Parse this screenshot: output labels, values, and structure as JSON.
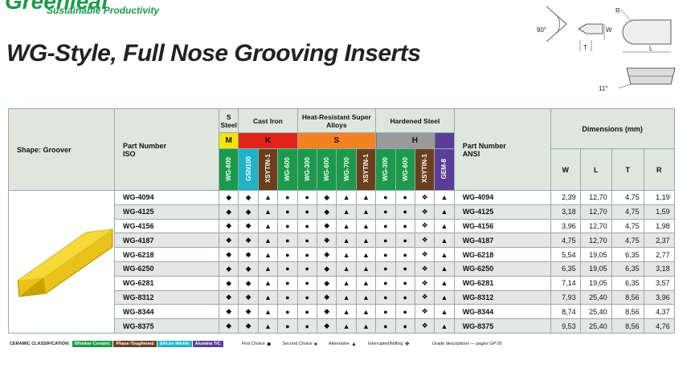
{
  "header": {
    "logo": "Greenleaf",
    "tagline": "Sustainable Productivity",
    "title": "WG-Style, Full Nose Grooving Inserts"
  },
  "diagram": {
    "labels": {
      "r": "R",
      "w": "W",
      "angle": "90°",
      "t": "T",
      "l": "L",
      "clearance": "11°"
    }
  },
  "table": {
    "shape_header": "Shape: Groover",
    "iso_header": [
      "Part Number",
      "ISO"
    ],
    "ansi_header": [
      "Part Number",
      "ANSI"
    ],
    "dimensions_header": "Dimensions (mm)",
    "dimension_columns": [
      "W",
      "L",
      "T",
      "R"
    ],
    "groups": [
      {
        "name": "S Steel",
        "letter": "M",
        "color": "#f5e400",
        "grades": [
          {
            "name": "WG-600",
            "color": "#1a9a4a"
          }
        ]
      },
      {
        "name": "Cast Iron",
        "letter": "K",
        "color": "#e2231a",
        "grades": [
          {
            "name": "GSN100",
            "color": "#1fb3c6"
          },
          {
            "name": "XSYTIN-1",
            "color": "#6b3f1e"
          },
          {
            "name": "WG-600",
            "color": "#1a9a4a"
          }
        ]
      },
      {
        "name": "Heat-Resistant Super Alloys",
        "letter": "S",
        "color": "#f58220",
        "grades": [
          {
            "name": "WG-300",
            "color": "#1a9a4a"
          },
          {
            "name": "WG-600",
            "color": "#1a9a4a"
          },
          {
            "name": "WG-700",
            "color": "#1a9a4a"
          },
          {
            "name": "XSYTIN-1",
            "color": "#6b3f1e"
          }
        ]
      },
      {
        "name": "Hardened Steel",
        "letter": "H",
        "color": "#9a9a9a",
        "grades": [
          {
            "name": "WG-300",
            "color": "#1a9a4a"
          },
          {
            "name": "WG-600",
            "color": "#1a9a4a"
          },
          {
            "name": "XSYTIN-1",
            "color": "#6b3f1e"
          },
          {
            "name": "GEM-8",
            "color": "#5a3d97"
          }
        ]
      }
    ],
    "rows": [
      {
        "iso": "WG-4094",
        "grades": [
          "◆",
          "◆",
          "▲",
          "●",
          "●",
          "◆",
          "▲",
          "▲",
          "●",
          "●",
          "❖",
          "▲"
        ],
        "ansi": "WG-4094",
        "dims": [
          "2,39",
          "12,70",
          "4,75",
          "1,19"
        ]
      },
      {
        "iso": "WG-4125",
        "grades": [
          "◆",
          "◆",
          "▲",
          "●",
          "●",
          "◆",
          "▲",
          "▲",
          "●",
          "●",
          "❖",
          "▲"
        ],
        "ansi": "WG-4125",
        "dims": [
          "3,18",
          "12,70",
          "4,75",
          "1,59"
        ]
      },
      {
        "iso": "WG-4156",
        "grades": [
          "◆",
          "◆",
          "▲",
          "●",
          "●",
          "◆",
          "▲",
          "▲",
          "●",
          "●",
          "❖",
          "▲"
        ],
        "ansi": "WG-4156",
        "dims": [
          "3,96",
          "12,70",
          "4,75",
          "1,98"
        ]
      },
      {
        "iso": "WG-4187",
        "grades": [
          "◆",
          "◆",
          "▲",
          "●",
          "●",
          "◆",
          "▲",
          "▲",
          "●",
          "●",
          "❖",
          "▲"
        ],
        "ansi": "WG-4187",
        "dims": [
          "4,75",
          "12,70",
          "4,75",
          "2,37"
        ]
      },
      {
        "iso": "WG-6218",
        "grades": [
          "◆",
          "◆",
          "▲",
          "●",
          "●",
          "◆",
          "▲",
          "▲",
          "●",
          "●",
          "❖",
          "▲"
        ],
        "ansi": "WG-6218",
        "dims": [
          "5,54",
          "19,05",
          "6,35",
          "2,77"
        ]
      },
      {
        "iso": "WG-6250",
        "grades": [
          "◆",
          "◆",
          "▲",
          "●",
          "●",
          "◆",
          "▲",
          "▲",
          "●",
          "●",
          "❖",
          "▲"
        ],
        "ansi": "WG-6250",
        "dims": [
          "6,35",
          "19,05",
          "6,35",
          "3,18"
        ]
      },
      {
        "iso": "WG-6281",
        "grades": [
          "◆",
          "◆",
          "▲",
          "●",
          "●",
          "◆",
          "▲",
          "▲",
          "●",
          "●",
          "❖",
          "▲"
        ],
        "ansi": "WG-6281",
        "dims": [
          "7,14",
          "19,05",
          "6,35",
          "3,57"
        ]
      },
      {
        "iso": "WG-8312",
        "grades": [
          "◆",
          "◆",
          "▲",
          "●",
          "●",
          "◆",
          "▲",
          "▲",
          "●",
          "●",
          "❖",
          "▲"
        ],
        "ansi": "WG-8312",
        "dims": [
          "7,93",
          "25,40",
          "8,56",
          "3,96"
        ]
      },
      {
        "iso": "WG-8344",
        "grades": [
          "◆",
          "◆",
          "▲",
          "●",
          "●",
          "◆",
          "▲",
          "▲",
          "●",
          "●",
          "❖",
          "▲"
        ],
        "ansi": "WG-8344",
        "dims": [
          "8,74",
          "25,40",
          "8,56",
          "4,37"
        ]
      },
      {
        "iso": "WG-8375",
        "grades": [
          "◆",
          "◆",
          "▲",
          "●",
          "●",
          "◆",
          "▲",
          "▲",
          "●",
          "●",
          "❖",
          "▲"
        ],
        "ansi": "WG-8375",
        "dims": [
          "9,53",
          "25,40",
          "8,56",
          "4,76"
        ]
      }
    ]
  },
  "legend": {
    "classification": "CERAMIC CLASSIFICATION:",
    "chips": [
      {
        "name": "Whisker Ceramic",
        "color": "#1a9a4a"
      },
      {
        "name": "Phase-Toughened",
        "color": "#6b3f1e"
      },
      {
        "name": "Silicon Nitride",
        "color": "#1fb3c6"
      },
      {
        "name": "Alumina TiC",
        "color": "#5a3d97"
      }
    ],
    "symbols": [
      {
        "name": "First Choice",
        "symbol": "◆"
      },
      {
        "name": "Second Choice",
        "symbol": "●"
      },
      {
        "name": "Alternative",
        "symbol": "▲"
      },
      {
        "name": "Interrupted/Milling",
        "symbol": "❖"
      }
    ],
    "note": "Grade descriptions — pages GP 05"
  }
}
